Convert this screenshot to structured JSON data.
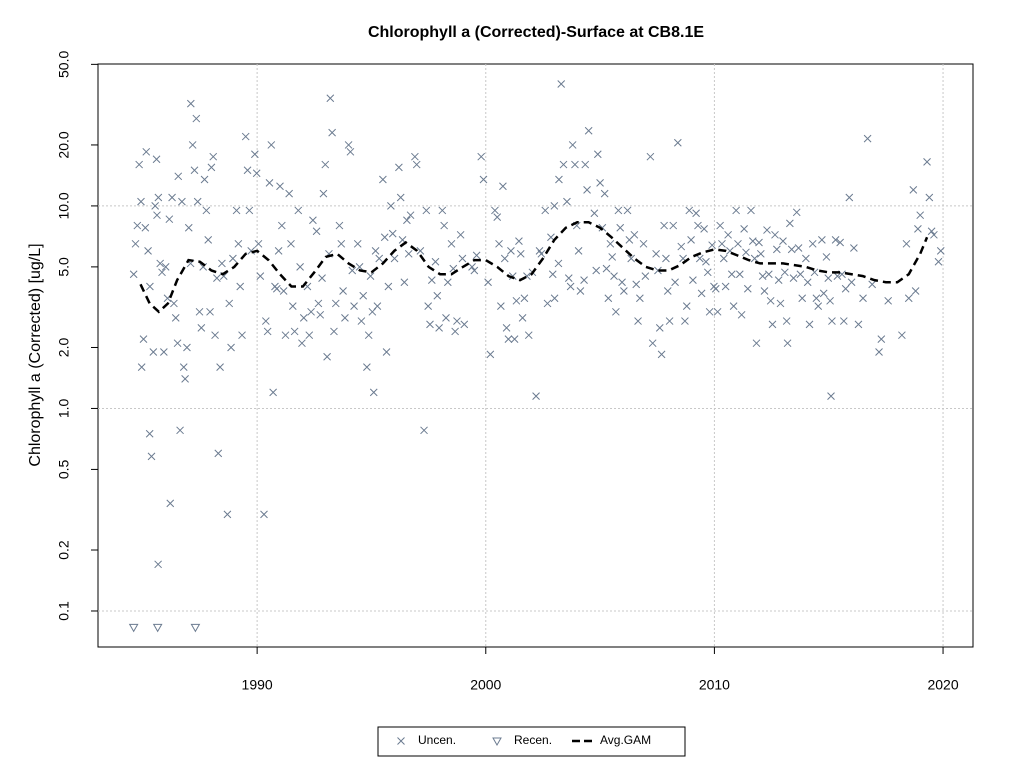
{
  "chart_data": {
    "type": "scatter",
    "title": "Chlorophyll a (Corrected)-Surface at CB8.1E",
    "y_label": "Chlorophyll a (Corrected) [ug/L]",
    "ylog": true,
    "xlim": [
      1983.04,
      2021.31
    ],
    "ylim": [
      0.0664,
      50.2
    ],
    "xticks": [
      1990,
      2000,
      2010,
      2020
    ],
    "yticks": [
      0.1,
      0.2,
      0.5,
      {
        "value": 1,
        "label": "1.0"
      },
      {
        "value": 2,
        "label": "2.0"
      },
      {
        "value": 5,
        "label": "5.0"
      },
      {
        "value": 10,
        "label": "10.0"
      },
      {
        "value": 20,
        "label": "20.0"
      },
      {
        "value": 50,
        "label": "50.0"
      }
    ],
    "x_gridlines": [
      1990,
      2000,
      2010,
      2020
    ],
    "y_gridlines": [
      0.1,
      1,
      10
    ],
    "grid": true,
    "legend": "bottom",
    "series": [
      {
        "name": "Uncen.",
        "color": "#6b7b90",
        "marker": "x",
        "x": [
          1984.6,
          1984.68,
          1984.76,
          1984.84,
          1984.92,
          1984.95,
          1985.03,
          1985.11,
          1985.15,
          1985.23,
          1985.31,
          1985.3,
          1985.38,
          1985.46,
          1985.54,
          1985.62,
          1985.6,
          1985.68,
          1985.76,
          1985.84,
          1985.92,
          1985.67,
          1986.0,
          1986.08,
          1986.16,
          1986.2,
          1986.28,
          1986.36,
          1986.44,
          1986.52,
          1986.55,
          1986.63,
          1986.71,
          1986.79,
          1986.85,
          1986.93,
          1987.01,
          1987.09,
          1987.1,
          1987.18,
          1987.26,
          1987.34,
          1987.4,
          1987.48,
          1987.56,
          1987.64,
          1987.7,
          1987.78,
          1987.86,
          1987.94,
          1988.0,
          1988.08,
          1988.16,
          1988.24,
          1988.3,
          1988.38,
          1988.46,
          1988.54,
          1988.7,
          1988.78,
          1988.86,
          1988.94,
          1989.1,
          1989.18,
          1989.26,
          1989.34,
          1989.5,
          1989.58,
          1989.66,
          1989.74,
          1989.9,
          1989.98,
          1990.06,
          1990.14,
          1990.3,
          1990.38,
          1990.46,
          1990.54,
          1990.62,
          1990.7,
          1990.78,
          1990.86,
          1990.94,
          1991.0,
          1991.08,
          1991.16,
          1991.24,
          1991.4,
          1991.48,
          1991.56,
          1991.64,
          1991.8,
          1991.88,
          1991.96,
          1992.04,
          1992.2,
          1992.28,
          1992.36,
          1992.44,
          1992.6,
          1992.68,
          1992.76,
          1992.84,
          1992.9,
          1992.98,
          1993.06,
          1993.14,
          1993.2,
          1993.28,
          1993.36,
          1993.44,
          1993.6,
          1993.68,
          1993.76,
          1993.84,
          1994.0,
          1994.08,
          1994.16,
          1994.24,
          1994.4,
          1994.48,
          1994.56,
          1994.64,
          1994.8,
          1994.88,
          1994.96,
          1995.04,
          1995.1,
          1995.18,
          1995.26,
          1995.34,
          1995.5,
          1995.58,
          1995.66,
          1995.74,
          1995.85,
          1995.93,
          1996.01,
          1996.2,
          1996.28,
          1996.36,
          1996.44,
          1996.55,
          1996.63,
          1996.71,
          1996.9,
          1996.98,
          1997.3,
          1997.14,
          1997.4,
          1997.48,
          1997.56,
          1997.64,
          1997.8,
          1997.88,
          1997.96,
          1998.1,
          1998.18,
          1998.26,
          1998.34,
          1998.5,
          1998.58,
          1998.66,
          1998.74,
          1998.9,
          1998.98,
          1999.06,
          1999.8,
          1999.9,
          1999.4,
          1999.5,
          1999.6,
          2000.1,
          2000.2,
          2000.4,
          2000.5,
          2000.58,
          2000.66,
          2000.75,
          2000.83,
          2000.91,
          2000.99,
          2001.1,
          2001.18,
          2001.26,
          2001.34,
          2001.45,
          2001.53,
          2001.61,
          2001.69,
          2001.8,
          2001.88,
          2002.2,
          2002.04,
          2002.6,
          2002.35,
          2002.43,
          2002.7,
          2003.0,
          2002.85,
          2002.93,
          2003.01,
          2003.3,
          2003.4,
          2003.2,
          2003.18,
          2003.8,
          2003.55,
          2003.63,
          2003.71,
          2003.9,
          2003.98,
          2004.06,
          2004.14,
          2004.5,
          2004.35,
          2004.43,
          2004.3,
          2004.9,
          2005.0,
          2004.75,
          2004.83,
          2005.2,
          2005.1,
          2005.28,
          2005.36,
          2005.45,
          2005.53,
          2005.61,
          2005.69,
          2005.8,
          2005.88,
          2005.96,
          2006.04,
          2006.2,
          2006.28,
          2006.36,
          2006.5,
          2006.58,
          2006.66,
          2006.74,
          2007.2,
          2006.9,
          2006.98,
          2007.3,
          2007.45,
          2007.53,
          2007.61,
          2007.69,
          2007.8,
          2007.88,
          2007.96,
          2008.04,
          2008.4,
          2008.2,
          2008.28,
          2008.55,
          2008.63,
          2008.71,
          2008.79,
          2008.9,
          2008.98,
          2009.06,
          2009.2,
          2009.28,
          2009.36,
          2009.44,
          2009.55,
          2009.63,
          2009.71,
          2009.79,
          2009.9,
          2009.98,
          2010.06,
          2010.14,
          2010.25,
          2010.33,
          2010.41,
          2010.49,
          2010.6,
          2010.68,
          2010.76,
          2010.84,
          2010.95,
          2011.03,
          2011.11,
          2011.19,
          2011.3,
          2011.38,
          2011.46,
          2011.6,
          2011.68,
          2011.76,
          2011.84,
          2011.95,
          2012.03,
          2012.11,
          2012.19,
          2012.3,
          2012.38,
          2012.46,
          2012.54,
          2012.65,
          2012.73,
          2012.81,
          2012.89,
          2013.0,
          2013.08,
          2015.1,
          2013.16,
          2013.3,
          2013.38,
          2013.46,
          2013.2,
          2013.6,
          2013.68,
          2013.76,
          2013.84,
          2015.9,
          2014.0,
          2014.08,
          2014.16,
          2014.3,
          2014.38,
          2014.46,
          2014.54,
          2016.7,
          2014.7,
          2014.78,
          2014.9,
          2014.98,
          2015.06,
          2015.14,
          2015.3,
          2015.38,
          2017.2,
          2017.3,
          2015.5,
          2015.58,
          2015.66,
          2015.74,
          2016.5,
          2018.2,
          2016.0,
          2016.3,
          2016.1,
          2016.9,
          2017.6,
          2018.5,
          2018.7,
          2019.0,
          2018.9,
          2018.8,
          2019.3,
          2019.4,
          2019.5,
          2018.4,
          2019.6,
          2019.8,
          2019.9
        ],
        "values": [
          4.6,
          6.5,
          8,
          16,
          10.5,
          1.6,
          2.2,
          7.8,
          18.5,
          6,
          4,
          0.75,
          0.58,
          1.9,
          10,
          9,
          17,
          11,
          5.2,
          4.7,
          1.9,
          0.17,
          5,
          3.5,
          8.6,
          0.34,
          11,
          3.3,
          2.8,
          2.1,
          14,
          0.78,
          10.5,
          1.6,
          1.4,
          2,
          7.8,
          5.2,
          32,
          20,
          15,
          27,
          10.5,
          3,
          2.5,
          5,
          13.5,
          9.5,
          6.8,
          3,
          15.5,
          17.5,
          2.3,
          4.4,
          0.6,
          1.6,
          5.2,
          4.5,
          0.3,
          3.3,
          2,
          5.5,
          9.5,
          6.5,
          4,
          2.3,
          22,
          15,
          9.5,
          6,
          18,
          14.5,
          6.5,
          4.5,
          0.3,
          2.7,
          2.4,
          13,
          20,
          1.2,
          4,
          3.9,
          6,
          12.5,
          8,
          3.8,
          2.3,
          11.5,
          6.5,
          3.2,
          2.4,
          9.5,
          5,
          2.1,
          2.8,
          4,
          2.3,
          3,
          8.5,
          7.5,
          3.3,
          2.9,
          4.4,
          11.5,
          16,
          1.8,
          5.8,
          34,
          23,
          2.4,
          3.3,
          8,
          6.5,
          3.8,
          2.8,
          20,
          18.5,
          4.8,
          3.2,
          6.5,
          5,
          2.7,
          3.6,
          1.6,
          2.3,
          4.5,
          3,
          1.2,
          6,
          3.2,
          5.5,
          13.5,
          7,
          1.9,
          4,
          10,
          7.3,
          5.5,
          15.5,
          11,
          6.8,
          4.2,
          8.5,
          5.8,
          9,
          17.5,
          16,
          0.78,
          6,
          9.5,
          3.2,
          2.6,
          4.3,
          5.3,
          3.6,
          2.5,
          9.5,
          8,
          2.8,
          4.2,
          6.5,
          4.9,
          2.4,
          2.7,
          7.2,
          5.5,
          2.6,
          17.5,
          13.5,
          5,
          4.8,
          5.7,
          4.2,
          1.85,
          9.5,
          8.8,
          6.5,
          3.2,
          12.5,
          5.5,
          2.5,
          2.2,
          6,
          4.5,
          2.2,
          3.4,
          6.7,
          5.8,
          2.8,
          3.5,
          4.5,
          2.3,
          1.15,
          4.7,
          9.5,
          6,
          5.8,
          3.3,
          10,
          7,
          4.6,
          3.5,
          40,
          16,
          13.5,
          5.2,
          20,
          10.5,
          4.4,
          4,
          16,
          8,
          6,
          3.8,
          23.5,
          16,
          12,
          4.3,
          18,
          13,
          9.2,
          4.8,
          11.5,
          7.8,
          4.9,
          3.5,
          6.5,
          5.6,
          4.5,
          3,
          9.5,
          7.8,
          4.2,
          3.8,
          9.5,
          6.8,
          5.5,
          7.2,
          4.1,
          2.7,
          3.5,
          17.5,
          6.5,
          4.5,
          2.1,
          5.8,
          4.8,
          2.5,
          1.85,
          8,
          5.5,
          3.8,
          2.7,
          20.5,
          8,
          4.2,
          6.3,
          5.5,
          2.7,
          3.2,
          9.5,
          6.8,
          4.3,
          9.2,
          8,
          5.5,
          3.7,
          7.7,
          5.3,
          4.7,
          3,
          6.4,
          4,
          3.9,
          3,
          8,
          6.5,
          5.5,
          4,
          7.2,
          6,
          4.6,
          3.2,
          9.5,
          6.5,
          4.6,
          2.9,
          7.7,
          5.9,
          3.9,
          9.5,
          6.7,
          5.5,
          2.1,
          6.6,
          5.8,
          4.5,
          3.8,
          7.6,
          4.6,
          3.4,
          2.6,
          7.2,
          6.1,
          4.3,
          3.3,
          6.7,
          4.7,
          1.15,
          2.7,
          8.2,
          6.1,
          4.4,
          2.1,
          9.3,
          6.2,
          4.6,
          3.5,
          11,
          5.5,
          4.2,
          2.6,
          6.5,
          4.7,
          3.5,
          3.2,
          21.5,
          6.8,
          3.7,
          5.6,
          4.4,
          3.4,
          2.7,
          6.8,
          4.5,
          1.9,
          2.2,
          6.6,
          4.6,
          2.7,
          3.9,
          3.5,
          2.3,
          4.2,
          2.6,
          6.2,
          4.1,
          3.4,
          3.5,
          12,
          9,
          7.7,
          3.8,
          16.5,
          11,
          7.5,
          6.5,
          7.2,
          5.3,
          6
        ]
      },
      {
        "name": "Recen.",
        "color": "#6b7b90",
        "marker": "triangle-down",
        "x": [
          1984.6,
          1985.65,
          1987.3
        ],
        "values": [
          0.083,
          0.083,
          0.083
        ]
      },
      {
        "name": "Avg.GAM",
        "color": "#000000",
        "marker": "line",
        "line_style": "dashed",
        "x": [
          1984.9,
          1985.3,
          1985.7,
          1986.1,
          1986.5,
          1987,
          1987.5,
          1988,
          1988.5,
          1989,
          1989.5,
          1990,
          1990.5,
          1991,
          1991.5,
          1992,
          1992.5,
          1993,
          1993.5,
          1994,
          1994.5,
          1995,
          1995.5,
          1996,
          1996.5,
          1997,
          1997.5,
          1998,
          1998.5,
          1999,
          1999.5,
          2000,
          2000.5,
          2001,
          2001.5,
          2002,
          2002.5,
          2003,
          2003.5,
          2004,
          2004.5,
          2005,
          2005.5,
          2006,
          2006.5,
          2007,
          2007.5,
          2008,
          2008.5,
          2009,
          2009.5,
          2010,
          2010.5,
          2011,
          2011.5,
          2012,
          2012.5,
          2013,
          2013.5,
          2014,
          2014.5,
          2015,
          2015.5,
          2016,
          2016.5,
          2017,
          2017.5,
          2018,
          2018.5,
          2019,
          2019.3
        ],
        "values": [
          4.1,
          3.3,
          3.0,
          3.3,
          4.3,
          5.4,
          5.3,
          4.8,
          4.6,
          5.0,
          5.8,
          6.0,
          5.4,
          4.6,
          4.0,
          4.0,
          4.7,
          5.6,
          5.8,
          5.2,
          4.8,
          4.7,
          5.2,
          6.0,
          6.6,
          6.0,
          5.0,
          4.6,
          4.6,
          5.0,
          5.4,
          5.4,
          5.0,
          4.5,
          4.3,
          4.6,
          5.5,
          6.8,
          7.8,
          8.3,
          8.3,
          7.8,
          7.0,
          6.2,
          5.5,
          5.0,
          4.8,
          4.8,
          5.1,
          5.6,
          5.9,
          6.1,
          6.0,
          5.7,
          5.4,
          5.2,
          5.2,
          5.2,
          5.1,
          5.0,
          4.8,
          4.7,
          4.7,
          4.6,
          4.5,
          4.3,
          4.2,
          4.2,
          4.6,
          5.8,
          7.0
        ]
      }
    ]
  }
}
